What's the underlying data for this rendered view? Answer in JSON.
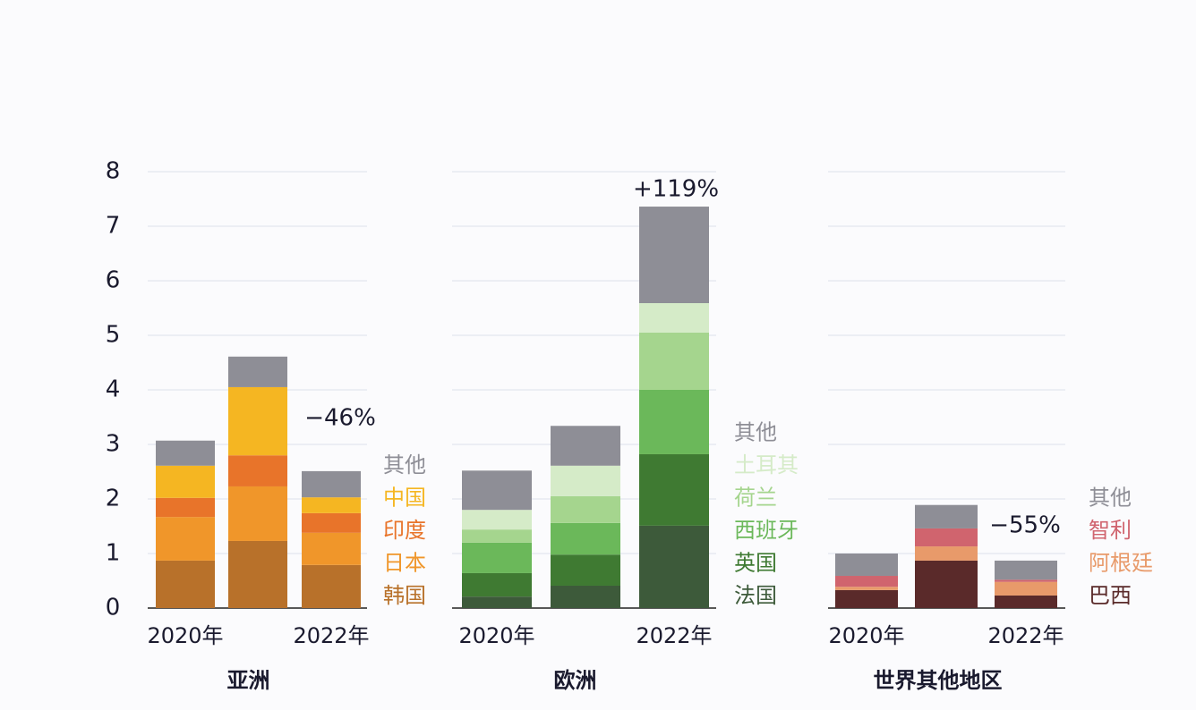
{
  "chart_data": [
    {
      "type": "bar",
      "stacked": true,
      "title": "亚洲",
      "annotation": "−46%",
      "categories": [
        "2020年",
        null,
        "2022年"
      ],
      "ylim": [
        0,
        8
      ],
      "yticks": [
        0,
        1,
        2,
        3,
        4,
        5,
        6,
        7,
        8
      ],
      "grid": true,
      "series": [
        {
          "name": "韩国",
          "color": "#b8712a",
          "values": [
            0.87,
            1.23,
            0.79
          ]
        },
        {
          "name": "日本",
          "color": "#f0962a",
          "values": [
            0.8,
            1.0,
            0.59
          ]
        },
        {
          "name": "印度",
          "color": "#e8742a",
          "values": [
            0.35,
            0.57,
            0.36
          ]
        },
        {
          "name": "中国",
          "color": "#f5b622",
          "values": [
            0.59,
            1.25,
            0.29
          ]
        },
        {
          "name": "其他",
          "color": "#8e8e96",
          "values": [
            0.46,
            0.56,
            0.48
          ]
        }
      ]
    },
    {
      "type": "bar",
      "stacked": true,
      "title": "欧洲",
      "annotation": "+119%",
      "categories": [
        "2020年",
        null,
        "2022年"
      ],
      "ylim": [
        0,
        8
      ],
      "grid": true,
      "series": [
        {
          "name": "法国",
          "color": "#3d5a3a",
          "values": [
            0.21,
            0.41,
            1.51
          ]
        },
        {
          "name": "英国",
          "color": "#3f7a32",
          "values": [
            0.43,
            0.57,
            1.31
          ]
        },
        {
          "name": "西班牙",
          "color": "#6bb85a",
          "values": [
            0.56,
            0.58,
            1.18
          ]
        },
        {
          "name": "荷兰",
          "color": "#a5d58e",
          "values": [
            0.24,
            0.49,
            1.05
          ]
        },
        {
          "name": "土耳其",
          "color": "#d5ebc8",
          "values": [
            0.36,
            0.56,
            0.54
          ]
        },
        {
          "name": "其他",
          "color": "#8e8e96",
          "values": [
            0.72,
            0.73,
            1.77
          ]
        }
      ]
    },
    {
      "type": "bar",
      "stacked": true,
      "title": "世界其他地区",
      "annotation": "−55%",
      "categories": [
        "2020年",
        null,
        "2022年"
      ],
      "ylim": [
        0,
        8
      ],
      "grid": true,
      "series": [
        {
          "name": "巴西",
          "color": "#5a2a2a",
          "values": [
            0.33,
            0.87,
            0.23
          ]
        },
        {
          "name": "阿根廷",
          "color": "#e89a6a",
          "values": [
            0.06,
            0.26,
            0.25
          ]
        },
        {
          "name": "智利",
          "color": "#d0646e",
          "values": [
            0.2,
            0.33,
            0.04
          ]
        },
        {
          "name": "其他",
          "color": "#8e8e96",
          "values": [
            0.41,
            0.43,
            0.35
          ]
        }
      ]
    }
  ]
}
